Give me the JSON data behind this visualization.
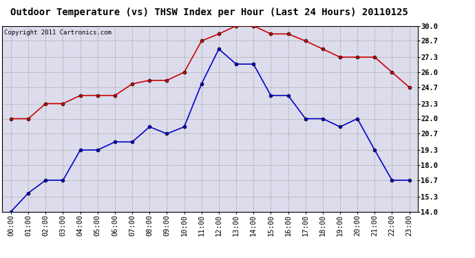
{
  "title": "Outdoor Temperature (vs) THSW Index per Hour (Last 24 Hours) 20110125",
  "copyright": "Copyright 2011 Cartronics.com",
  "hours": [
    "00:00",
    "01:00",
    "02:00",
    "03:00",
    "04:00",
    "05:00",
    "06:00",
    "07:00",
    "08:00",
    "09:00",
    "10:00",
    "11:00",
    "12:00",
    "13:00",
    "14:00",
    "15:00",
    "16:00",
    "17:00",
    "18:00",
    "19:00",
    "20:00",
    "21:00",
    "22:00",
    "23:00"
  ],
  "temp_blue": [
    14.0,
    15.6,
    16.7,
    16.7,
    19.3,
    19.3,
    20.0,
    20.0,
    21.3,
    20.7,
    21.3,
    25.0,
    28.0,
    26.7,
    26.7,
    24.0,
    24.0,
    22.0,
    22.0,
    21.3,
    22.0,
    19.3,
    16.7,
    16.7
  ],
  "thsw_red": [
    22.0,
    22.0,
    23.3,
    23.3,
    24.0,
    24.0,
    24.0,
    25.0,
    25.3,
    25.3,
    26.0,
    28.7,
    29.3,
    30.0,
    30.0,
    29.3,
    29.3,
    28.7,
    28.0,
    27.3,
    27.3,
    27.3,
    26.0,
    24.7
  ],
  "ylim": [
    14.0,
    30.0
  ],
  "yticks": [
    14.0,
    15.3,
    16.7,
    18.0,
    19.3,
    20.7,
    22.0,
    23.3,
    24.7,
    26.0,
    27.3,
    28.7,
    30.0
  ],
  "blue_color": "#0000cc",
  "red_color": "#cc0000",
  "bg_color": "#ffffff",
  "plot_bg": "#dcdcec",
  "grid_color": "#aaaaaa",
  "title_fontsize": 10,
  "copyright_fontsize": 6.5,
  "tick_fontsize": 7.5
}
